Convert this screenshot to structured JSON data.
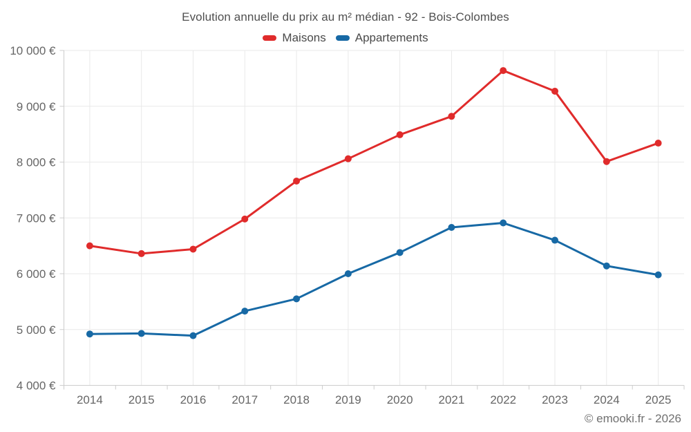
{
  "footer": {
    "credit": "© emooki.fr - 2026"
  },
  "chart_data": {
    "type": "line",
    "title": "Evolution annuelle du prix au m² médian - 92 - Bois-Colombes",
    "categories": [
      "2014",
      "2015",
      "2016",
      "2017",
      "2018",
      "2019",
      "2020",
      "2021",
      "2022",
      "2023",
      "2024",
      "2025"
    ],
    "series": [
      {
        "name": "Maisons",
        "color": "#e02b2b",
        "values": [
          6500,
          6360,
          6440,
          6980,
          7660,
          8060,
          8490,
          8820,
          9640,
          9270,
          8010,
          8340
        ]
      },
      {
        "name": "Appartements",
        "color": "#1769a5",
        "values": [
          4920,
          4930,
          4890,
          5330,
          5550,
          6000,
          6380,
          6830,
          6910,
          6600,
          6140,
          5980
        ]
      }
    ],
    "xlabel": "",
    "ylabel": "",
    "ylim": [
      4000,
      10000
    ],
    "y_ticks": [
      4000,
      5000,
      6000,
      7000,
      8000,
      9000,
      10000
    ],
    "y_tick_labels": [
      "4 000 €",
      "5 000 €",
      "6 000 €",
      "7 000 €",
      "8 000 €",
      "9 000 €",
      "10 000 €"
    ],
    "grid": true,
    "legend_position": "top",
    "colors": {
      "grid_line": "#e9e9e9",
      "axis_line": "#cccccc",
      "tick_mark": "#cccccc",
      "axis_text": "#666666"
    }
  }
}
